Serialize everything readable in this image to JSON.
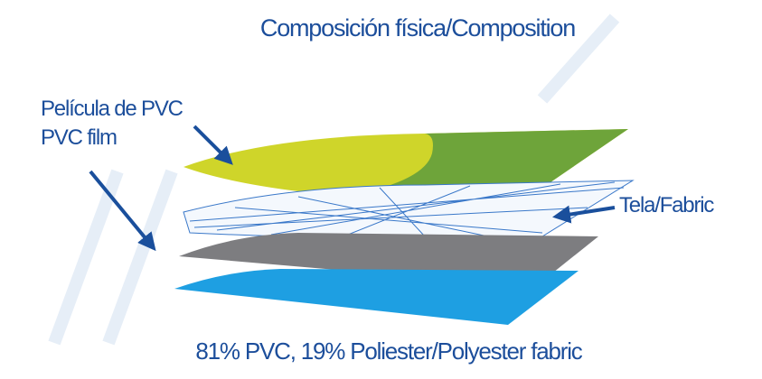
{
  "title": "Composición física/Composition",
  "labels": {
    "pvc_film_es": "Película de PVC",
    "pvc_film_en": "PVC film",
    "fabric": "Tela/Fabric"
  },
  "footer": "81% PVC, 19% Poliester/Polyester fabric"
}
